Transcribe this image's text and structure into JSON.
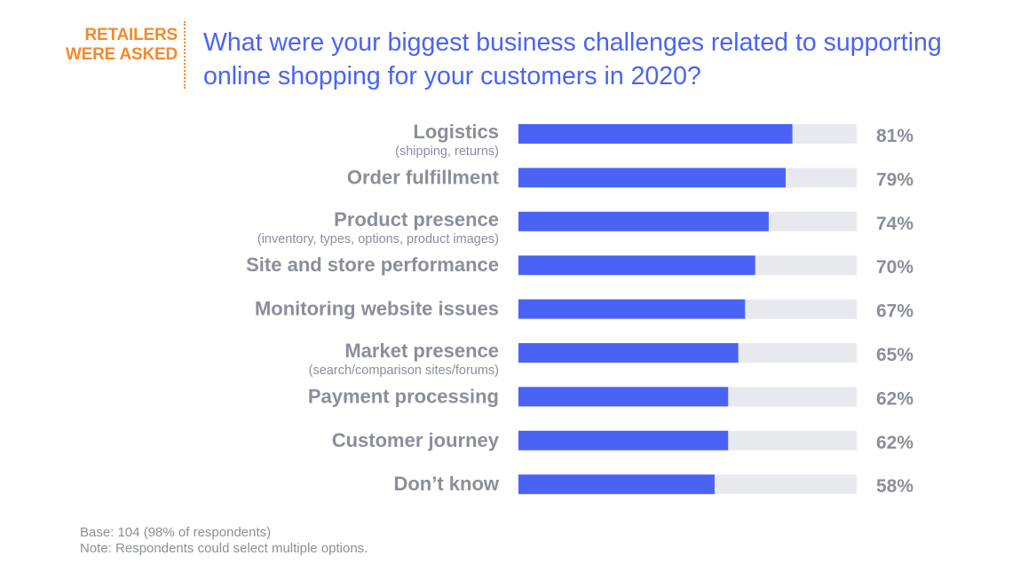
{
  "header": {
    "tag_line1": "RETAILERS",
    "tag_line2": "WERE ASKED",
    "question": "What were your biggest business challenges related to supporting online shopping for your customers in 2020?"
  },
  "colors": {
    "bar": "#4a63f5",
    "track": "#e8e9ee",
    "accent": "#f5882a",
    "label": "#8a8f99"
  },
  "chart_data": {
    "type": "bar",
    "orientation": "horizontal",
    "categories": [
      "Logistics",
      "Order fulfillment",
      "Product presence",
      "Site and store performance",
      "Monitoring website issues",
      "Market presence",
      "Payment processing",
      "Customer journey",
      "Don’t know"
    ],
    "subtitles": [
      "(shipping, returns)",
      "",
      "(inventory, types, options, product images)",
      "",
      "",
      "(search/comparison sites/forums)",
      "",
      "",
      ""
    ],
    "values": [
      81,
      79,
      74,
      70,
      67,
      65,
      62,
      62,
      58
    ],
    "value_labels": [
      "81%",
      "79%",
      "74%",
      "70%",
      "67%",
      "65%",
      "62%",
      "62%",
      "58%"
    ],
    "xlim": [
      0,
      100
    ],
    "grid": false
  },
  "footer": {
    "base": "Base: 104 (98% of respondents)",
    "note": "Note: Respondents could select multiple options."
  }
}
